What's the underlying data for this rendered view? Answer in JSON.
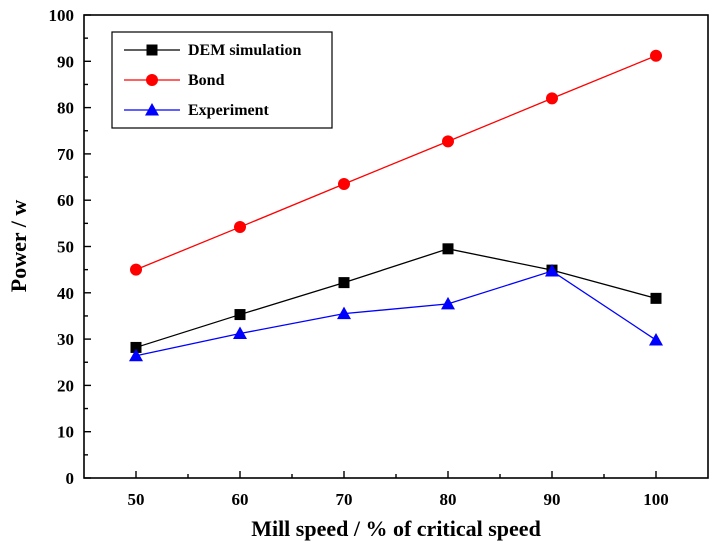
{
  "chart_data": {
    "type": "line",
    "xlabel": "Mill speed / % of critical speed",
    "ylabel": "Power / w",
    "xlim": [
      45,
      105
    ],
    "ylim": [
      0,
      100
    ],
    "x_ticks": [
      50,
      60,
      70,
      80,
      90,
      100
    ],
    "y_ticks": [
      0,
      10,
      20,
      30,
      40,
      50,
      60,
      70,
      80,
      90,
      100
    ],
    "x": [
      50,
      60,
      70,
      80,
      90,
      100
    ],
    "grid": false,
    "legend_position": "top-left",
    "series": [
      {
        "name": "DEM simulation",
        "marker": "square",
        "color": "#000000",
        "values": [
          28.2,
          35.3,
          42.2,
          49.5,
          44.9,
          38.8
        ]
      },
      {
        "name": "Bond",
        "marker": "circle",
        "color": "#ff0000",
        "values": [
          45.0,
          54.2,
          63.5,
          72.7,
          82.0,
          91.2
        ]
      },
      {
        "name": "Experiment",
        "marker": "triangle",
        "color": "#0000ff",
        "values": [
          26.4,
          31.2,
          35.5,
          37.6,
          44.7,
          29.8
        ]
      }
    ]
  }
}
